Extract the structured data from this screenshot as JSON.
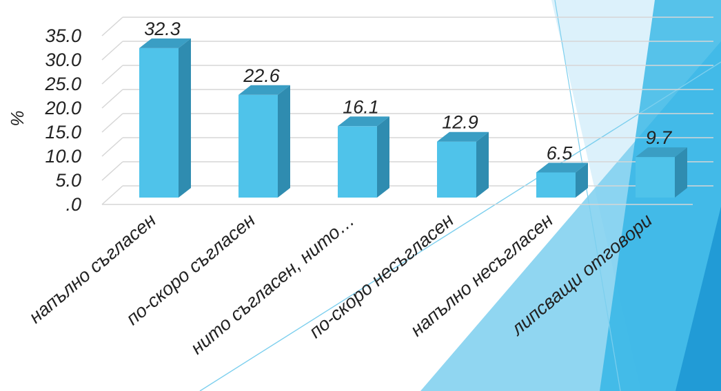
{
  "chart_data": {
    "type": "bar",
    "categories": [
      "напълно съгласен",
      "по-скоро съгласен",
      "нито съгласен, нито…",
      "по-скоро несъгласен",
      "напълно несъгласен",
      "липсващи отговори"
    ],
    "values": [
      32.3,
      22.6,
      16.1,
      12.9,
      6.5,
      9.7
    ],
    "value_labels": [
      "32.3",
      "22.6",
      "16.1",
      "12.9",
      "6.5",
      "9.7"
    ],
    "ylabel": "%",
    "yticks": [
      ".0",
      "5.0",
      "10.0",
      "15.0",
      "20.0",
      "25.0",
      "30.0",
      "35.0"
    ],
    "ylim": [
      0,
      35
    ],
    "grid": true,
    "bar_color": "#4fc3ea",
    "bar_side_color": "#2f8cb0",
    "bar_top_color": "#3a9ec4"
  },
  "decor": {
    "light": "#bfe6f7",
    "mid": "#7ccfee",
    "deep": "#29b2e4",
    "dark": "#1993d1"
  }
}
